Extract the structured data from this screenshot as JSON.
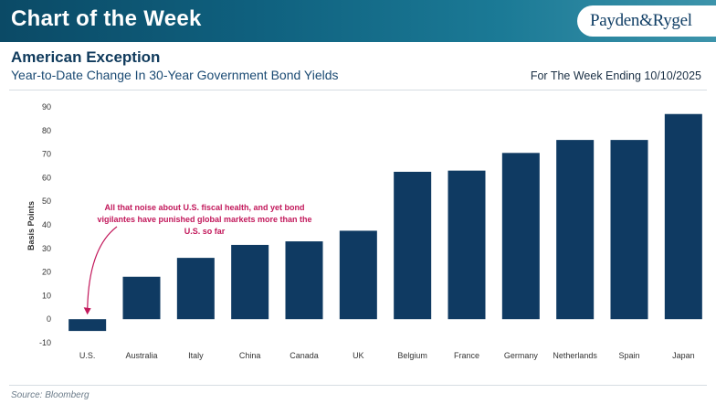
{
  "header": {
    "banner_title": "Chart of the Week",
    "brand": "Payden&Rygel"
  },
  "title": "American Exception",
  "subtitle": "Year-to-Date Change In 30-Year Government Bond Yields",
  "week_ending": "For The Week Ending 10/10/2025",
  "source": "Source: Bloomberg",
  "colors": {
    "bar": "#0f3a62",
    "annotation": "#c2185b"
  },
  "chart_data": {
    "type": "bar",
    "categories": [
      "U.S.",
      "Australia",
      "Italy",
      "China",
      "Canada",
      "UK",
      "Belgium",
      "France",
      "Germany",
      "Netherlands",
      "Spain",
      "Japan"
    ],
    "values": [
      -5,
      18,
      26,
      31.5,
      33,
      37.5,
      62.5,
      63,
      70.5,
      76,
      76,
      87
    ],
    "ylabel": "Basis Points",
    "ylim": [
      -10,
      90
    ],
    "yticks": [
      90,
      80,
      70,
      60,
      50,
      40,
      30,
      20,
      10,
      0,
      -10
    ],
    "grid": false,
    "annotation": {
      "lines": [
        "All that noise about U.S. fiscal health, and yet bond",
        "vigilantes have punished global markets more than the",
        "U.S. so far"
      ],
      "points_to": "U.S."
    }
  }
}
